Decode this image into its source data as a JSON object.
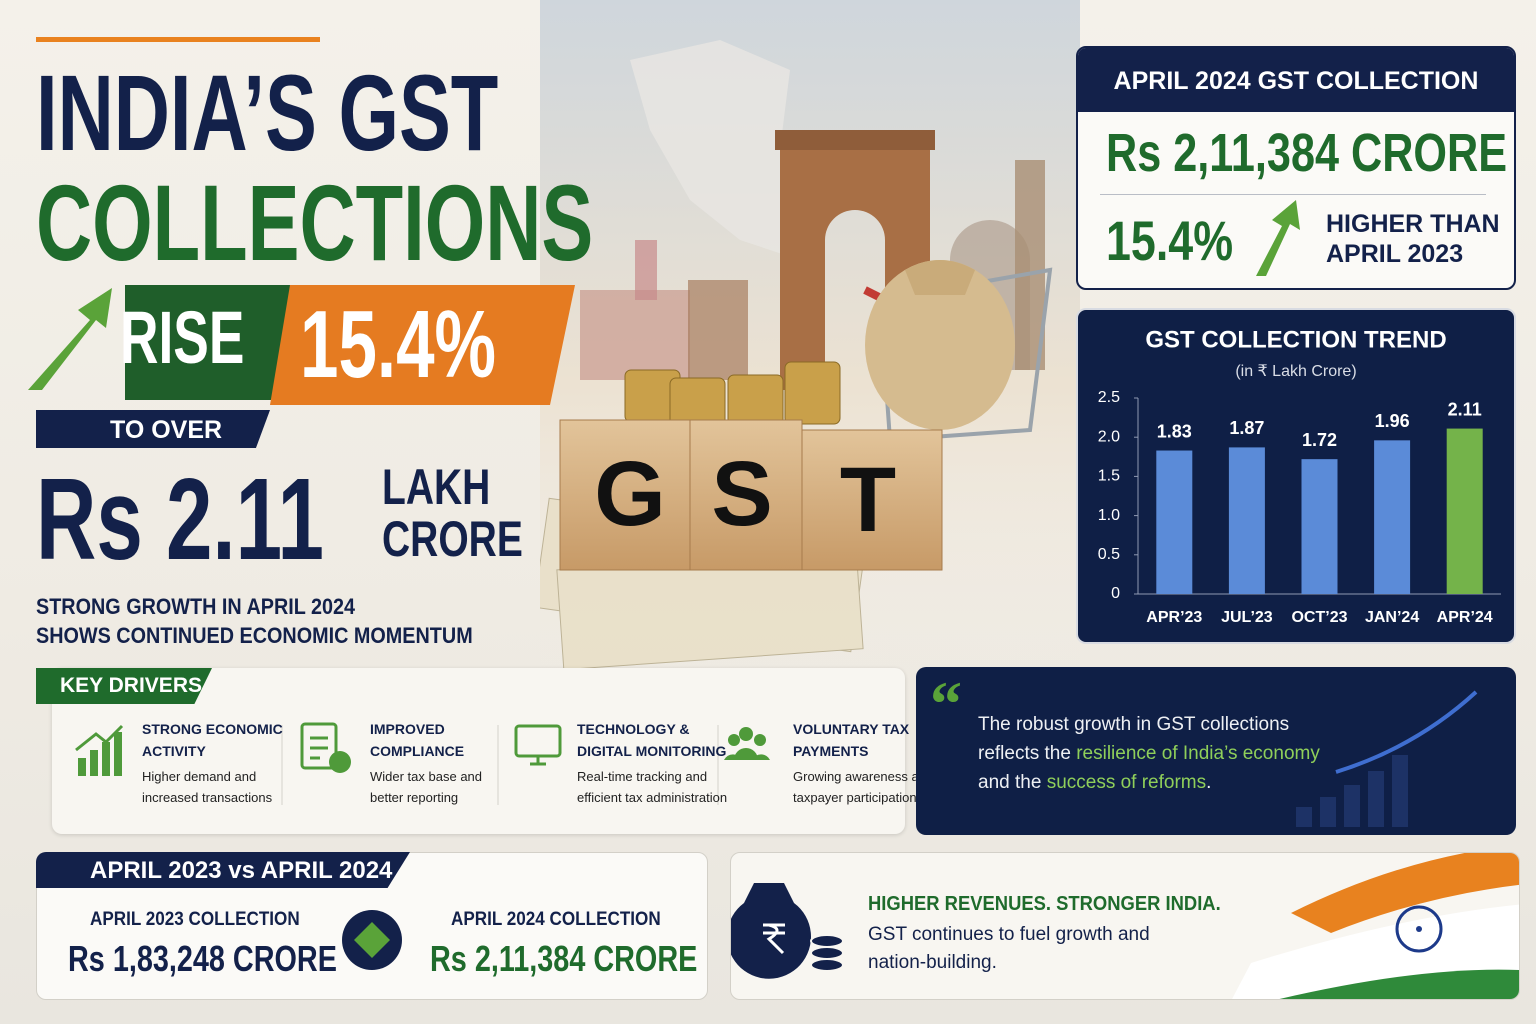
{
  "header": {
    "title_line1": "INDIA’S GST",
    "title_line2": "COLLECTIONS",
    "rise_label": "RISE",
    "rise_value": "15.4%",
    "to_over": "TO OVER",
    "amount": "Rs 2.11",
    "unit_line1": "LAKH",
    "unit_line2": "CRORE",
    "tagline_line1": "STRONG GROWTH IN APRIL 2024",
    "tagline_line2": "SHOWS CONTINUED ECONOMIC MOMENTUM"
  },
  "center_image": {
    "blocks": [
      "G",
      "S",
      "T"
    ]
  },
  "summary_card": {
    "title": "APRIL 2024 GST COLLECTION",
    "amount": "Rs 2,11,384 CRORE",
    "growth": "15.4%",
    "comparison_line1": "HIGHER THAN",
    "comparison_line2": "APRIL 2023"
  },
  "chart_data": {
    "type": "bar",
    "title": "GST COLLECTION TREND",
    "subtitle": "(in ₹ Lakh Crore)",
    "categories": [
      "APR’23",
      "JUL’23",
      "OCT’23",
      "JAN’24",
      "APR’24"
    ],
    "values": [
      1.83,
      1.87,
      1.72,
      1.96,
      2.11
    ],
    "colors": [
      "#5b8bd8",
      "#5b8bd8",
      "#5b8bd8",
      "#5b8bd8",
      "#74b34a"
    ],
    "ylim": [
      0,
      2.5
    ],
    "yticks": [
      0,
      0.5,
      {
        "value": 1.0,
        "label": "1.0"
      },
      1.5,
      {
        "value": 2.0,
        "label": "2.0"
      },
      2.5
    ]
  },
  "key_drivers": {
    "title": "KEY DRIVERS",
    "items": [
      {
        "title_line1": "STRONG ECONOMIC",
        "title_line2": "ACTIVITY",
        "desc_line1": "Higher demand and",
        "desc_line2": "increased transactions"
      },
      {
        "title_line1": "IMPROVED",
        "title_line2": "COMPLIANCE",
        "desc_line1": "Wider tax base and",
        "desc_line2": "better reporting"
      },
      {
        "title_line1": "TECHNOLOGY &",
        "title_line2": "DIGITAL MONITORING",
        "desc_line1": "Real-time tracking and",
        "desc_line2": "efficient tax administration"
      },
      {
        "title_line1": "VOLUNTARY TAX",
        "title_line2": "PAYMENTS",
        "desc_line1": "Growing awareness and",
        "desc_line2": "taxpayer participation"
      }
    ]
  },
  "quote": {
    "line1": "The robust growth in GST collections",
    "line2_prefix": "reflects the",
    "highlight1": "resilience of India’s economy",
    "line3_prefix": "and the",
    "highlight2": "success of reforms",
    "suffix": "."
  },
  "comparison": {
    "title": "APRIL 2023 vs APRIL 2024",
    "left_label": "APRIL 2023 COLLECTION",
    "left_amount": "Rs 1,83,248 CRORE",
    "right_label": "APRIL 2024 COLLECTION",
    "right_amount": "Rs 2,11,384 CRORE"
  },
  "footer": {
    "headline": "HIGHER REVENUES. STRONGER INDIA.",
    "text_line1": "GST continues to fuel growth and",
    "text_line2": "nation-building."
  }
}
